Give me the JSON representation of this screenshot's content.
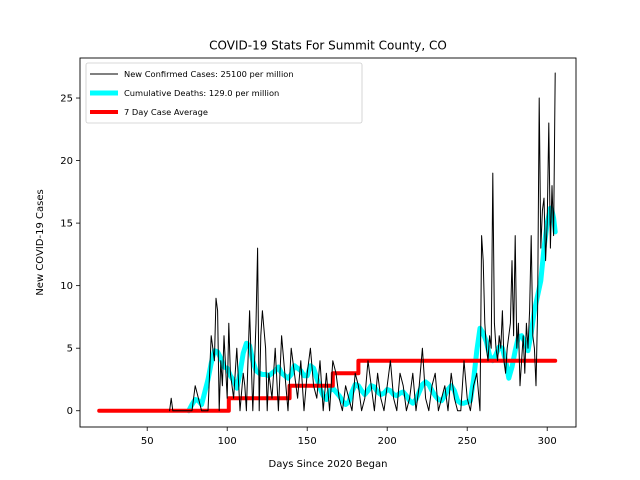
{
  "chart_data": {
    "type": "line",
    "title": "COVID-19 Stats For Summit County, CO",
    "xlabel": "Days Since 2020 Began",
    "ylabel": "New COVID-19 Cases",
    "xlim": [
      8,
      318
    ],
    "ylim": [
      -1.3,
      28.2
    ],
    "xticks": [
      50,
      100,
      150,
      200,
      250,
      300
    ],
    "yticks": [
      0,
      5,
      10,
      15,
      20,
      25
    ],
    "grid": false,
    "legend_position": "top-left",
    "series": [
      {
        "name": "New Confirmed Cases: 25100 per million",
        "color": "#000000",
        "x": [
          64,
          65,
          66,
          68,
          70,
          72,
          74,
          76,
          78,
          80,
          82,
          84,
          86,
          88,
          90,
          92,
          93,
          94,
          95,
          96,
          97,
          98,
          100,
          101,
          102,
          104,
          106,
          108,
          110,
          111,
          112,
          114,
          116,
          118,
          119,
          120,
          121,
          122,
          124,
          125,
          126,
          128,
          130,
          132,
          134,
          136,
          138,
          140,
          142,
          144,
          146,
          148,
          150,
          152,
          154,
          156,
          158,
          160,
          162,
          164,
          166,
          168,
          170,
          172,
          174,
          176,
          178,
          180,
          182,
          184,
          186,
          188,
          190,
          192,
          194,
          196,
          198,
          200,
          202,
          204,
          206,
          208,
          210,
          212,
          214,
          216,
          218,
          220,
          222,
          224,
          226,
          228,
          230,
          232,
          234,
          236,
          238,
          240,
          242,
          244,
          246,
          248,
          250,
          252,
          254,
          256,
          258,
          259,
          260,
          261,
          262,
          263,
          264,
          265,
          266,
          267,
          268,
          269,
          270,
          271,
          272,
          273,
          274,
          275,
          276,
          277,
          278,
          279,
          280,
          281,
          282,
          283,
          284,
          285,
          286,
          287,
          288,
          289,
          290,
          291,
          292,
          293,
          294,
          295,
          296,
          297,
          298,
          299,
          300,
          301,
          302,
          303,
          304,
          305
        ],
        "y": [
          0,
          1,
          0,
          0,
          0,
          0,
          0,
          0,
          0,
          2,
          1,
          0,
          0,
          0,
          6,
          4,
          9,
          8,
          0,
          4,
          2,
          6,
          1,
          7,
          3,
          1,
          5,
          0,
          3,
          2,
          0,
          8,
          0,
          7,
          13,
          0,
          6,
          8,
          5,
          0,
          3,
          1,
          5,
          0,
          6,
          3,
          0,
          5,
          3,
          1,
          4,
          0,
          3,
          5,
          2,
          1,
          4,
          0,
          3,
          0,
          4,
          3,
          1,
          0,
          2,
          1,
          0,
          3,
          2,
          0,
          1,
          4,
          2,
          0,
          3,
          1,
          0,
          2,
          4,
          1,
          0,
          3,
          2,
          0,
          1,
          3,
          0,
          2,
          5,
          1,
          0,
          2,
          3,
          0,
          1,
          2,
          0,
          3,
          1,
          0,
          0,
          4,
          1,
          0,
          2,
          3,
          0,
          14,
          12,
          7,
          5,
          4,
          6,
          5,
          19,
          7,
          5,
          4,
          6,
          5,
          8,
          4,
          3,
          5,
          6,
          7,
          12,
          6,
          14,
          5,
          7,
          2,
          4,
          6,
          3,
          7,
          5,
          8,
          14,
          6,
          5,
          2,
          8,
          25,
          13,
          16,
          17,
          12,
          15,
          23,
          13,
          18,
          14,
          27
        ]
      },
      {
        "name": "Cumulative Deaths: 129.0 per million",
        "color": "#00ffff",
        "x": [
          76,
          78,
          80,
          82,
          84,
          86,
          88,
          90,
          92,
          94,
          96,
          98,
          100,
          102,
          104,
          106,
          108,
          110,
          112,
          114,
          116,
          118,
          120,
          122,
          124,
          126,
          128,
          130,
          132,
          134,
          136,
          138,
          140,
          142,
          144,
          146,
          148,
          150,
          152,
          154,
          156,
          158,
          160,
          162,
          164,
          166,
          168,
          170,
          172,
          174,
          176,
          178,
          180,
          182,
          184,
          186,
          188,
          190,
          192,
          194,
          196,
          198,
          200,
          202,
          204,
          206,
          208,
          210,
          212,
          214,
          216,
          218,
          220,
          222,
          224,
          226,
          228,
          230,
          232,
          234,
          236,
          238,
          240,
          242,
          244,
          246,
          248,
          250,
          252,
          254,
          256,
          258,
          260,
          262,
          264,
          266,
          268,
          270,
          272,
          274,
          276,
          278,
          280,
          282,
          284,
          286,
          288,
          290,
          292,
          294,
          296,
          298,
          300,
          302,
          303,
          304,
          305
        ],
        "y": [
          0,
          0.5,
          0.9,
          0.8,
          0.5,
          1.5,
          2.5,
          3.8,
          4.8,
          4.7,
          4.2,
          3.5,
          3.4,
          2.8,
          2.4,
          1.8,
          3.0,
          4.6,
          5.4,
          5.2,
          4.0,
          3.2,
          3.0,
          2.9,
          2.9,
          2.8,
          3.0,
          3.2,
          3.5,
          3.0,
          2.8,
          2.6,
          2.9,
          3.6,
          3.4,
          3.2,
          2.8,
          2.8,
          3.6,
          3.4,
          2.6,
          1.8,
          1.2,
          0.9,
          1.6,
          1.8,
          1.5,
          1.2,
          0.8,
          0.5,
          0.7,
          1.5,
          2.1,
          2.0,
          1.6,
          1.3,
          1.6,
          2.0,
          1.9,
          1.5,
          1.3,
          1.4,
          1.7,
          1.6,
          1.3,
          1.2,
          1.4,
          1.5,
          1.2,
          0.8,
          0.6,
          0.9,
          1.5,
          2.1,
          2.3,
          2.1,
          1.6,
          1.2,
          0.9,
          0.8,
          1.2,
          1.7,
          2.0,
          1.6,
          0.8,
          0.6,
          0.6,
          0.7,
          0.8,
          2.5,
          4.8,
          6.6,
          6.2,
          5.5,
          4.4,
          4.0,
          4.5,
          5.1,
          5.0,
          4.0,
          2.6,
          3.5,
          4.8,
          5.9,
          6.0,
          5.5,
          4.8,
          6.2,
          8.0,
          9.2,
          10.4,
          13.0,
          15.0,
          16.2,
          16.0,
          15.4,
          14.3
        ]
      },
      {
        "name": "7 Day Case Average",
        "color": "#ff0000",
        "step": true,
        "x": [
          20,
          101,
          101,
          139,
          139,
          166,
          166,
          182,
          182,
          305
        ],
        "y": [
          0,
          0,
          1,
          1,
          2,
          2,
          3,
          3,
          4,
          4
        ]
      }
    ]
  }
}
